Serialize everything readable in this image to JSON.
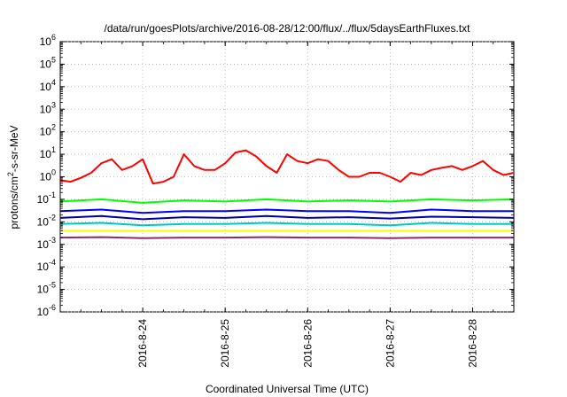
{
  "chart_data": {
    "type": "line",
    "title": "/data/run/goesPlots/archive/2016-08-28/12:00/flux/../flux/5daysEarthFluxes.txt",
    "xlabel": "Coordinated Universal Time (UTC)",
    "ylabel": {
      "base": "protons/cm",
      "sup": "2",
      "rest": "-s-sr-MeV"
    },
    "y_scale": "log",
    "ylim": [
      1e-06,
      1000000.0
    ],
    "xlim": [
      "2016-08-23T00:00",
      "2016-08-28T12:00"
    ],
    "grid": true,
    "legend": "none",
    "y_ticks": [
      {
        "value": 1e-06,
        "base": "10",
        "exp": "-6"
      },
      {
        "value": 1e-05,
        "base": "10",
        "exp": "-5"
      },
      {
        "value": 0.0001,
        "base": "10",
        "exp": "-4"
      },
      {
        "value": 0.001,
        "base": "10",
        "exp": "-3"
      },
      {
        "value": 0.01,
        "base": "10",
        "exp": "-2"
      },
      {
        "value": 0.1,
        "base": "10",
        "exp": "-1"
      },
      {
        "value": 1,
        "base": "10",
        "exp": "0"
      },
      {
        "value": 10,
        "base": "10",
        "exp": "1"
      },
      {
        "value": 100,
        "base": "10",
        "exp": "2"
      },
      {
        "value": 1000,
        "base": "10",
        "exp": "3"
      },
      {
        "value": 10000,
        "base": "10",
        "exp": "4"
      },
      {
        "value": 100000,
        "base": "10",
        "exp": "5"
      },
      {
        "value": 1000000,
        "base": "10",
        "exp": "6"
      }
    ],
    "x_ticks": [
      {
        "value": "2016-08-24T00:00",
        "label": "2016-8-24"
      },
      {
        "value": "2016-08-25T00:00",
        "label": "2016-8-25"
      },
      {
        "value": "2016-08-26T00:00",
        "label": "2016-8-26"
      },
      {
        "value": "2016-08-27T00:00",
        "label": "2016-8-27"
      },
      {
        "value": "2016-08-28T00:00",
        "label": "2016-8-28"
      }
    ],
    "series": [
      {
        "color": "#ff0000",
        "x": [
          "2016-08-23T00:00",
          "2016-08-23T03:00",
          "2016-08-23T06:00",
          "2016-08-23T09:00",
          "2016-08-23T12:00",
          "2016-08-23T15:00",
          "2016-08-23T18:00",
          "2016-08-23T21:00",
          "2016-08-24T00:00",
          "2016-08-24T03:00",
          "2016-08-24T06:00",
          "2016-08-24T09:00",
          "2016-08-24T12:00",
          "2016-08-24T15:00",
          "2016-08-24T18:00",
          "2016-08-24T21:00",
          "2016-08-25T00:00",
          "2016-08-25T03:00",
          "2016-08-25T06:00",
          "2016-08-25T09:00",
          "2016-08-25T12:00",
          "2016-08-25T15:00",
          "2016-08-25T18:00",
          "2016-08-25T21:00",
          "2016-08-26T00:00",
          "2016-08-26T03:00",
          "2016-08-26T06:00",
          "2016-08-26T09:00",
          "2016-08-26T12:00",
          "2016-08-26T15:00",
          "2016-08-26T18:00",
          "2016-08-26T21:00",
          "2016-08-27T00:00",
          "2016-08-27T03:00",
          "2016-08-27T06:00",
          "2016-08-27T09:00",
          "2016-08-27T12:00",
          "2016-08-27T15:00",
          "2016-08-27T18:00",
          "2016-08-27T21:00",
          "2016-08-28T00:00",
          "2016-08-28T03:00",
          "2016-08-28T06:00",
          "2016-08-28T09:00",
          "2016-08-28T12:00"
        ],
        "values": [
          0.7,
          0.6,
          0.9,
          1.5,
          4,
          6,
          2,
          3,
          6,
          0.5,
          0.6,
          1,
          10,
          3,
          2,
          2,
          4,
          12,
          15,
          8,
          3,
          1.5,
          10,
          5,
          4,
          6,
          5,
          2,
          1,
          1,
          1.5,
          1.5,
          1,
          0.6,
          1.5,
          1.2,
          2,
          2.5,
          3,
          2,
          3,
          5,
          2,
          1.2,
          1.5
        ]
      },
      {
        "color": "#00ff00",
        "x": [
          "2016-08-23T00:00",
          "2016-08-23T12:00",
          "2016-08-24T00:00",
          "2016-08-24T12:00",
          "2016-08-25T00:00",
          "2016-08-25T12:00",
          "2016-08-26T00:00",
          "2016-08-26T12:00",
          "2016-08-27T00:00",
          "2016-08-27T12:00",
          "2016-08-28T00:00",
          "2016-08-28T12:00"
        ],
        "values": [
          0.08,
          0.1,
          0.07,
          0.09,
          0.08,
          0.1,
          0.08,
          0.09,
          0.08,
          0.1,
          0.09,
          0.1
        ]
      },
      {
        "color": "#0000ff",
        "x": [
          "2016-08-23T00:00",
          "2016-08-23T12:00",
          "2016-08-24T00:00",
          "2016-08-24T12:00",
          "2016-08-25T00:00",
          "2016-08-25T12:00",
          "2016-08-26T00:00",
          "2016-08-26T12:00",
          "2016-08-27T00:00",
          "2016-08-27T12:00",
          "2016-08-28T00:00",
          "2016-08-28T12:00"
        ],
        "values": [
          0.03,
          0.035,
          0.025,
          0.03,
          0.03,
          0.035,
          0.03,
          0.03,
          0.025,
          0.035,
          0.03,
          0.03
        ]
      },
      {
        "color": "#0000a0",
        "x": [
          "2016-08-23T00:00",
          "2016-08-23T12:00",
          "2016-08-24T00:00",
          "2016-08-24T12:00",
          "2016-08-25T00:00",
          "2016-08-25T12:00",
          "2016-08-26T00:00",
          "2016-08-26T12:00",
          "2016-08-27T00:00",
          "2016-08-27T12:00",
          "2016-08-28T00:00",
          "2016-08-28T12:00"
        ],
        "values": [
          0.015,
          0.018,
          0.013,
          0.016,
          0.015,
          0.018,
          0.015,
          0.016,
          0.014,
          0.017,
          0.016,
          0.015
        ]
      },
      {
        "color": "#00c8c8",
        "x": [
          "2016-08-23T00:00",
          "2016-08-23T12:00",
          "2016-08-24T00:00",
          "2016-08-24T12:00",
          "2016-08-25T00:00",
          "2016-08-25T12:00",
          "2016-08-26T00:00",
          "2016-08-26T12:00",
          "2016-08-27T00:00",
          "2016-08-27T12:00",
          "2016-08-28T00:00",
          "2016-08-28T12:00"
        ],
        "values": [
          0.008,
          0.009,
          0.007,
          0.008,
          0.008,
          0.009,
          0.008,
          0.008,
          0.007,
          0.009,
          0.008,
          0.008
        ]
      },
      {
        "color": "#ffff00",
        "x": [
          "2016-08-23T00:00",
          "2016-08-23T12:00",
          "2016-08-24T00:00",
          "2016-08-24T12:00",
          "2016-08-25T00:00",
          "2016-08-25T12:00",
          "2016-08-26T00:00",
          "2016-08-26T12:00",
          "2016-08-27T00:00",
          "2016-08-27T12:00",
          "2016-08-28T00:00",
          "2016-08-28T12:00"
        ],
        "values": [
          0.004,
          0.004,
          0.004,
          0.004,
          0.004,
          0.004,
          0.004,
          0.004,
          0.004,
          0.004,
          0.004,
          0.004
        ]
      },
      {
        "color": "#8b2c6e",
        "x": [
          "2016-08-23T00:00",
          "2016-08-23T12:00",
          "2016-08-24T00:00",
          "2016-08-24T12:00",
          "2016-08-25T00:00",
          "2016-08-25T12:00",
          "2016-08-26T00:00",
          "2016-08-26T12:00",
          "2016-08-27T00:00",
          "2016-08-27T12:00",
          "2016-08-28T00:00",
          "2016-08-28T12:00"
        ],
        "values": [
          0.002,
          0.0021,
          0.0019,
          0.002,
          0.002,
          0.0021,
          0.002,
          0.002,
          0.0019,
          0.002,
          0.002,
          0.002
        ]
      }
    ]
  }
}
